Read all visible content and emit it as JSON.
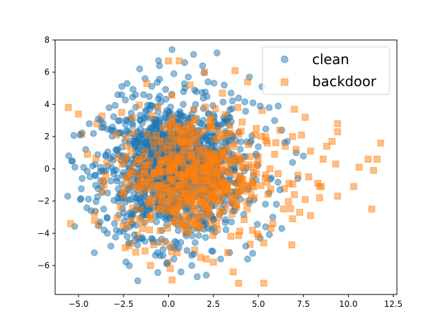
{
  "chart_data": {
    "type": "scatter",
    "title": "",
    "xlabel": "",
    "ylabel": "",
    "xlim": [
      -6.3,
      12.7
    ],
    "ylim": [
      -7.8,
      8.0
    ],
    "xticks": [
      -5.0,
      -2.5,
      0.0,
      2.5,
      5.0,
      7.5,
      10.0,
      12.5
    ],
    "xtick_labels": [
      "−5.0",
      "−2.5",
      "0.0",
      "2.5",
      "5.0",
      "7.5",
      "10.0",
      "12.5"
    ],
    "yticks": [
      -6,
      -4,
      -2,
      0,
      2,
      4,
      6,
      8
    ],
    "ytick_labels": [
      "−6",
      "−4",
      "−2",
      "0",
      "2",
      "4",
      "6",
      "8"
    ],
    "grid": false,
    "legend_position": "top-right",
    "series": [
      {
        "name": "clean",
        "marker": "circle",
        "color": "#1f77b4",
        "alpha": 0.5,
        "points": [
          [
            0.2,
            7.4
          ],
          [
            1.4,
            7.1
          ],
          [
            2.7,
            7.2
          ],
          [
            -1.6,
            6.2
          ],
          [
            -0.5,
            6.4
          ],
          [
            0.9,
            6.6
          ],
          [
            1.9,
            6.4
          ],
          [
            -2.3,
            5.3
          ],
          [
            -1.3,
            5.6
          ],
          [
            0.3,
            5.9
          ],
          [
            1.1,
            5.7
          ],
          [
            2.2,
            5.4
          ],
          [
            3.1,
            5.2
          ],
          [
            -2.6,
            4.6
          ],
          [
            4.5,
            5.7
          ],
          [
            5.2,
            5.1
          ],
          [
            -3.3,
            3.8
          ],
          [
            3.9,
            4.4
          ],
          [
            4.7,
            4.1
          ],
          [
            5.1,
            3.9
          ],
          [
            5.6,
            3.8
          ],
          [
            6.1,
            3.9
          ],
          [
            -4.4,
            2.8
          ],
          [
            -3.9,
            3.1
          ],
          [
            5.9,
            3.0
          ],
          [
            6.3,
            2.4
          ],
          [
            -4.9,
            2.1
          ],
          [
            6.6,
            1.7
          ],
          [
            -4.6,
            1.2
          ],
          [
            7.1,
            1.0
          ],
          [
            7.5,
            0.8
          ],
          [
            -5.2,
            0.1
          ],
          [
            6.9,
            0.4
          ],
          [
            -4.8,
            -0.6
          ],
          [
            7.2,
            -0.6
          ],
          [
            -5.6,
            -1.7
          ],
          [
            -4.9,
            -1.9
          ],
          [
            6.2,
            -1.3
          ],
          [
            -4.3,
            -2.6
          ],
          [
            6.0,
            -2.2
          ],
          [
            5.8,
            -3.0
          ],
          [
            -3.8,
            -3.3
          ],
          [
            -3.4,
            -4.0
          ],
          [
            6.3,
            -3.7
          ],
          [
            -3.2,
            -4.8
          ],
          [
            -2.2,
            -4.6
          ],
          [
            -1.3,
            -4.5
          ],
          [
            -0.6,
            -5.2
          ],
          [
            0.3,
            -5.6
          ],
          [
            1.4,
            -5.3
          ],
          [
            2.4,
            -5.1
          ],
          [
            3.4,
            -5.2
          ],
          [
            4.3,
            -4.8
          ],
          [
            -0.1,
            -5.9
          ],
          [
            1.3,
            -6.0
          ],
          [
            0.7,
            -6.4
          ],
          [
            1.6,
            -6.7
          ],
          [
            2.1,
            -6.6
          ],
          [
            4.4,
            -5.6
          ],
          [
            2.9,
            -5.6
          ],
          [
            -1.9,
            -4.1
          ],
          [
            5.1,
            -4.3
          ],
          [
            5.4,
            -3.6
          ],
          [
            -2.9,
            -3.8
          ],
          [
            -0.3,
            -5.0
          ]
        ]
      },
      {
        "name": "backdoor",
        "marker": "square",
        "color": "#ff7f0e",
        "alpha": 0.5,
        "points": [
          [
            0.0,
            6.7
          ],
          [
            0.6,
            6.7
          ],
          [
            2.0,
            6.0
          ],
          [
            3.7,
            6.1
          ],
          [
            -1.2,
            5.3
          ],
          [
            1.2,
            5.2
          ],
          [
            4.4,
            5.4
          ],
          [
            -5.0,
            3.4
          ],
          [
            7.0,
            3.7
          ],
          [
            7.6,
            3.2
          ],
          [
            6.2,
            2.4
          ],
          [
            6.9,
            2.0
          ],
          [
            7.4,
            2.1
          ],
          [
            9.4,
            2.8
          ],
          [
            9.4,
            2.3
          ],
          [
            11.8,
            1.6
          ],
          [
            6.5,
            1.4
          ],
          [
            7.1,
            1.2
          ],
          [
            7.9,
            1.1
          ],
          [
            8.8,
            1.4
          ],
          [
            9.1,
            1.7
          ],
          [
            8.6,
            0.6
          ],
          [
            9.3,
            0.3
          ],
          [
            11.1,
            0.6
          ],
          [
            11.6,
            0.6
          ],
          [
            10.6,
            0.1
          ],
          [
            11.4,
            -0.1
          ],
          [
            7.2,
            -0.4
          ],
          [
            7.8,
            -0.5
          ],
          [
            8.3,
            -0.9
          ],
          [
            8.4,
            -1.1
          ],
          [
            8.5,
            -1.1
          ],
          [
            10.3,
            -1.1
          ],
          [
            7.0,
            -1.6
          ],
          [
            7.6,
            -1.9
          ],
          [
            8.4,
            -1.8
          ],
          [
            9.4,
            -1.7
          ],
          [
            7.9,
            -2.9
          ],
          [
            7.3,
            -2.7
          ],
          [
            6.9,
            -3.1
          ],
          [
            11.3,
            -2.5
          ],
          [
            5.8,
            -3.4
          ],
          [
            5.0,
            -4.2
          ],
          [
            5.3,
            -4.6
          ],
          [
            -4.1,
            -3.2
          ],
          [
            -2.4,
            -4.9
          ],
          [
            -1.3,
            -5.1
          ],
          [
            -1.0,
            -6.0
          ],
          [
            0.1,
            -6.2
          ],
          [
            0.2,
            -6.9
          ],
          [
            2.5,
            -5.8
          ],
          [
            3.3,
            -5.2
          ],
          [
            3.6,
            -6.4
          ],
          [
            3.9,
            -7.1
          ],
          [
            5.3,
            -7.1
          ],
          [
            2.1,
            -5.6
          ],
          [
            5.7,
            -3.7
          ],
          [
            6.4,
            -2.5
          ],
          [
            6.7,
            -0.9
          ],
          [
            -4.5,
            0.9
          ],
          [
            -3.7,
            -1.4
          ],
          [
            -2.9,
            2.1
          ],
          [
            3.0,
            4.7
          ],
          [
            4.8,
            2.1
          ],
          [
            5.5,
            1.6
          ],
          [
            5.9,
            0.9
          ],
          [
            6.1,
            -0.3
          ],
          [
            4.6,
            -1.6
          ],
          [
            4.1,
            2.9
          ]
        ]
      }
    ]
  }
}
